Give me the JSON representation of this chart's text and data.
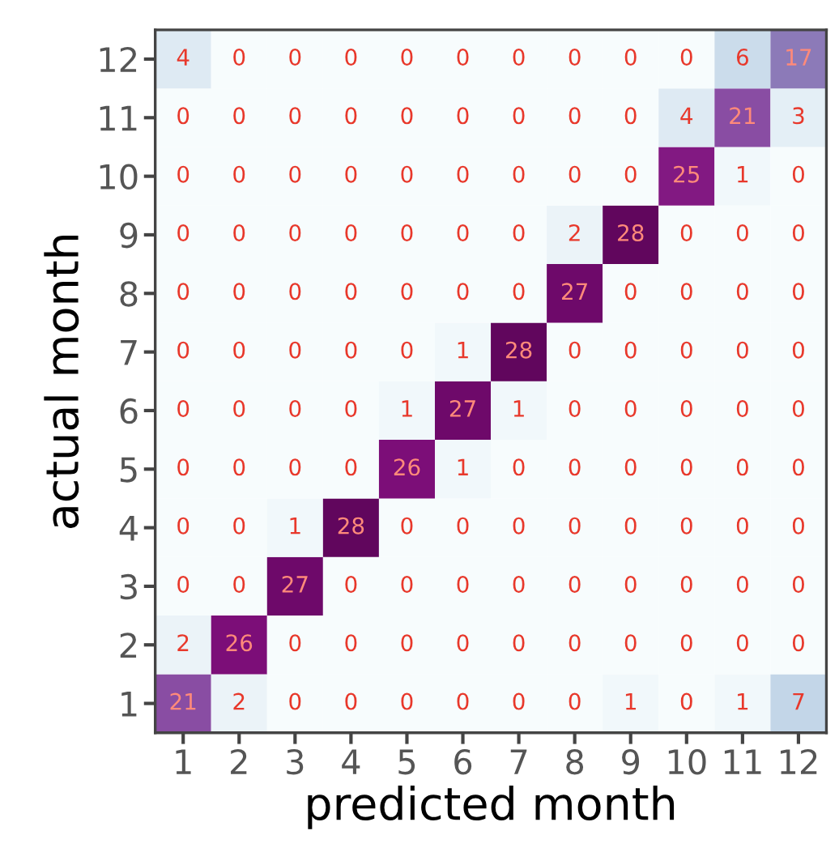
{
  "chart_data": {
    "type": "heatmap",
    "xlabel": "predicted month",
    "ylabel": "actual month",
    "categories": [
      "1",
      "2",
      "3",
      "4",
      "5",
      "6",
      "7",
      "8",
      "9",
      "10",
      "11",
      "12"
    ],
    "y_categories": [
      "12",
      "11",
      "10",
      "9",
      "8",
      "7",
      "6",
      "5",
      "4",
      "3",
      "2",
      "1"
    ],
    "cells": [
      [
        4,
        0,
        0,
        0,
        0,
        0,
        0,
        0,
        0,
        0,
        6,
        17
      ],
      [
        0,
        0,
        0,
        0,
        0,
        0,
        0,
        0,
        0,
        4,
        21,
        3
      ],
      [
        0,
        0,
        0,
        0,
        0,
        0,
        0,
        0,
        0,
        25,
        1,
        0
      ],
      [
        0,
        0,
        0,
        0,
        0,
        0,
        0,
        2,
        28,
        0,
        0,
        0
      ],
      [
        0,
        0,
        0,
        0,
        0,
        0,
        0,
        27,
        0,
        0,
        0,
        0
      ],
      [
        0,
        0,
        0,
        0,
        0,
        1,
        28,
        0,
        0,
        0,
        0,
        0
      ],
      [
        0,
        0,
        0,
        0,
        1,
        27,
        1,
        0,
        0,
        0,
        0,
        0
      ],
      [
        0,
        0,
        0,
        0,
        26,
        1,
        0,
        0,
        0,
        0,
        0,
        0
      ],
      [
        0,
        0,
        1,
        28,
        0,
        0,
        0,
        0,
        0,
        0,
        0,
        0
      ],
      [
        0,
        0,
        27,
        0,
        0,
        0,
        0,
        0,
        0,
        0,
        0,
        0
      ],
      [
        2,
        26,
        0,
        0,
        0,
        0,
        0,
        0,
        0,
        0,
        0,
        0
      ],
      [
        21,
        2,
        0,
        0,
        0,
        0,
        0,
        0,
        1,
        0,
        1,
        7
      ]
    ],
    "data_labels": true,
    "grid": false
  }
}
